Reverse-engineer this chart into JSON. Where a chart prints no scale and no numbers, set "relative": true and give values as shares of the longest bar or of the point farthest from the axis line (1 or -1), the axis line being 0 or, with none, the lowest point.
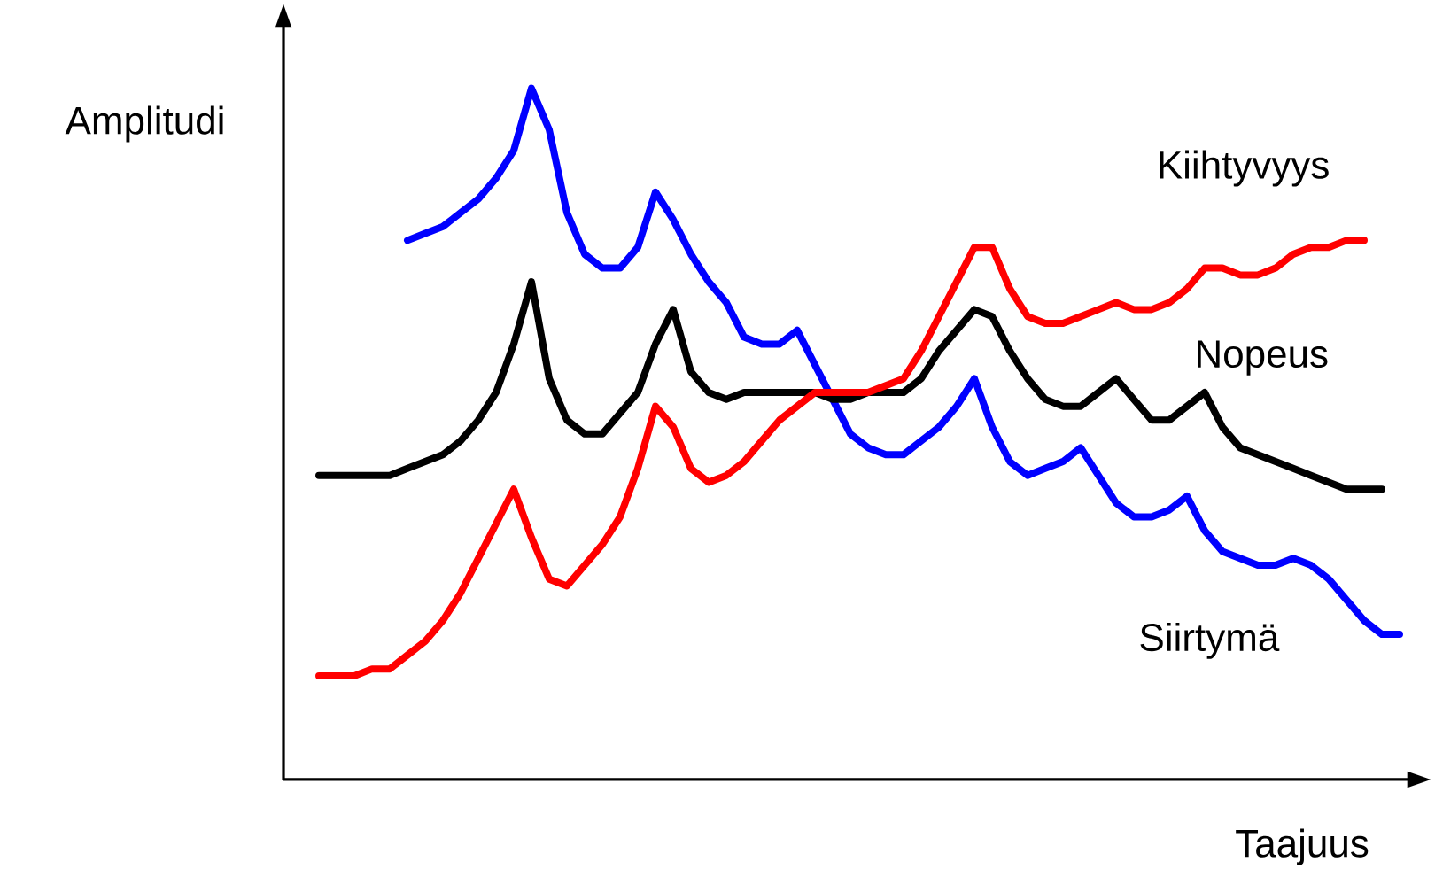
{
  "chart_data": {
    "type": "line",
    "relative": true,
    "xlabel": "Taajuus",
    "ylabel": "Amplitudi",
    "categories": [
      null,
      null,
      null,
      null,
      null,
      null,
      null,
      null,
      null,
      null,
      null,
      null,
      null,
      null,
      null,
      null,
      null,
      null,
      null,
      null,
      null,
      null,
      null,
      null,
      null,
      null,
      null,
      null,
      null,
      null,
      null,
      null,
      null,
      null,
      null,
      null,
      null,
      null,
      null,
      null,
      null,
      null,
      null,
      null,
      null,
      null,
      null,
      null,
      null,
      null,
      null,
      null,
      null,
      null,
      null,
      null,
      null,
      null,
      null,
      null,
      null,
      null
    ],
    "series": [
      {
        "name": "Siirtymä",
        "color": "#0000ff",
        "values": [
          null,
          null,
          null,
          null,
          null,
          0.78,
          0.79,
          0.8,
          0.82,
          0.84,
          0.87,
          0.91,
          1.0,
          0.94,
          0.82,
          0.76,
          0.74,
          0.74,
          0.77,
          0.85,
          0.81,
          0.76,
          0.72,
          0.69,
          0.64,
          0.63,
          0.63,
          0.65,
          0.6,
          0.55,
          0.5,
          0.48,
          0.47,
          0.47,
          0.49,
          0.51,
          0.54,
          0.58,
          0.51,
          0.46,
          0.44,
          0.45,
          0.46,
          0.48,
          0.44,
          0.4,
          0.38,
          0.38,
          0.39,
          0.41,
          0.36,
          0.33,
          0.32,
          0.31,
          0.31,
          0.32,
          0.31,
          0.29,
          0.26,
          0.23,
          0.21,
          0.21
        ]
      },
      {
        "name": "Nopeus",
        "color": "#000000",
        "values": [
          0.44,
          0.44,
          0.44,
          0.44,
          0.44,
          0.45,
          0.46,
          0.47,
          0.49,
          0.52,
          0.56,
          0.63,
          0.72,
          0.58,
          0.52,
          0.5,
          0.5,
          0.53,
          0.56,
          0.63,
          0.68,
          0.59,
          0.56,
          0.55,
          0.56,
          0.56,
          0.56,
          0.56,
          0.56,
          0.55,
          0.55,
          0.56,
          0.56,
          0.56,
          0.58,
          0.62,
          0.65,
          0.68,
          0.67,
          0.62,
          0.58,
          0.55,
          0.54,
          0.54,
          0.56,
          0.58,
          0.55,
          0.52,
          0.52,
          0.54,
          0.56,
          0.51,
          0.48,
          0.47,
          0.46,
          0.45,
          0.44,
          0.43,
          0.42,
          0.42,
          0.42,
          null
        ]
      },
      {
        "name": "Kiihtyvyys",
        "color": "#ff0000",
        "values": [
          0.15,
          0.15,
          0.15,
          0.16,
          0.16,
          0.18,
          0.2,
          0.23,
          0.27,
          0.32,
          0.37,
          0.42,
          0.35,
          0.29,
          0.28,
          0.31,
          0.34,
          0.38,
          0.45,
          0.54,
          0.51,
          0.45,
          0.43,
          0.44,
          0.46,
          0.49,
          0.52,
          0.54,
          0.56,
          0.56,
          0.56,
          0.56,
          0.57,
          0.58,
          0.62,
          0.67,
          0.72,
          0.77,
          0.77,
          0.71,
          0.67,
          0.66,
          0.66,
          0.67,
          0.68,
          0.69,
          0.68,
          0.68,
          0.69,
          0.71,
          0.74,
          0.74,
          0.73,
          0.73,
          0.74,
          0.76,
          0.77,
          0.77,
          0.78,
          0.78,
          null,
          null
        ]
      }
    ]
  }
}
